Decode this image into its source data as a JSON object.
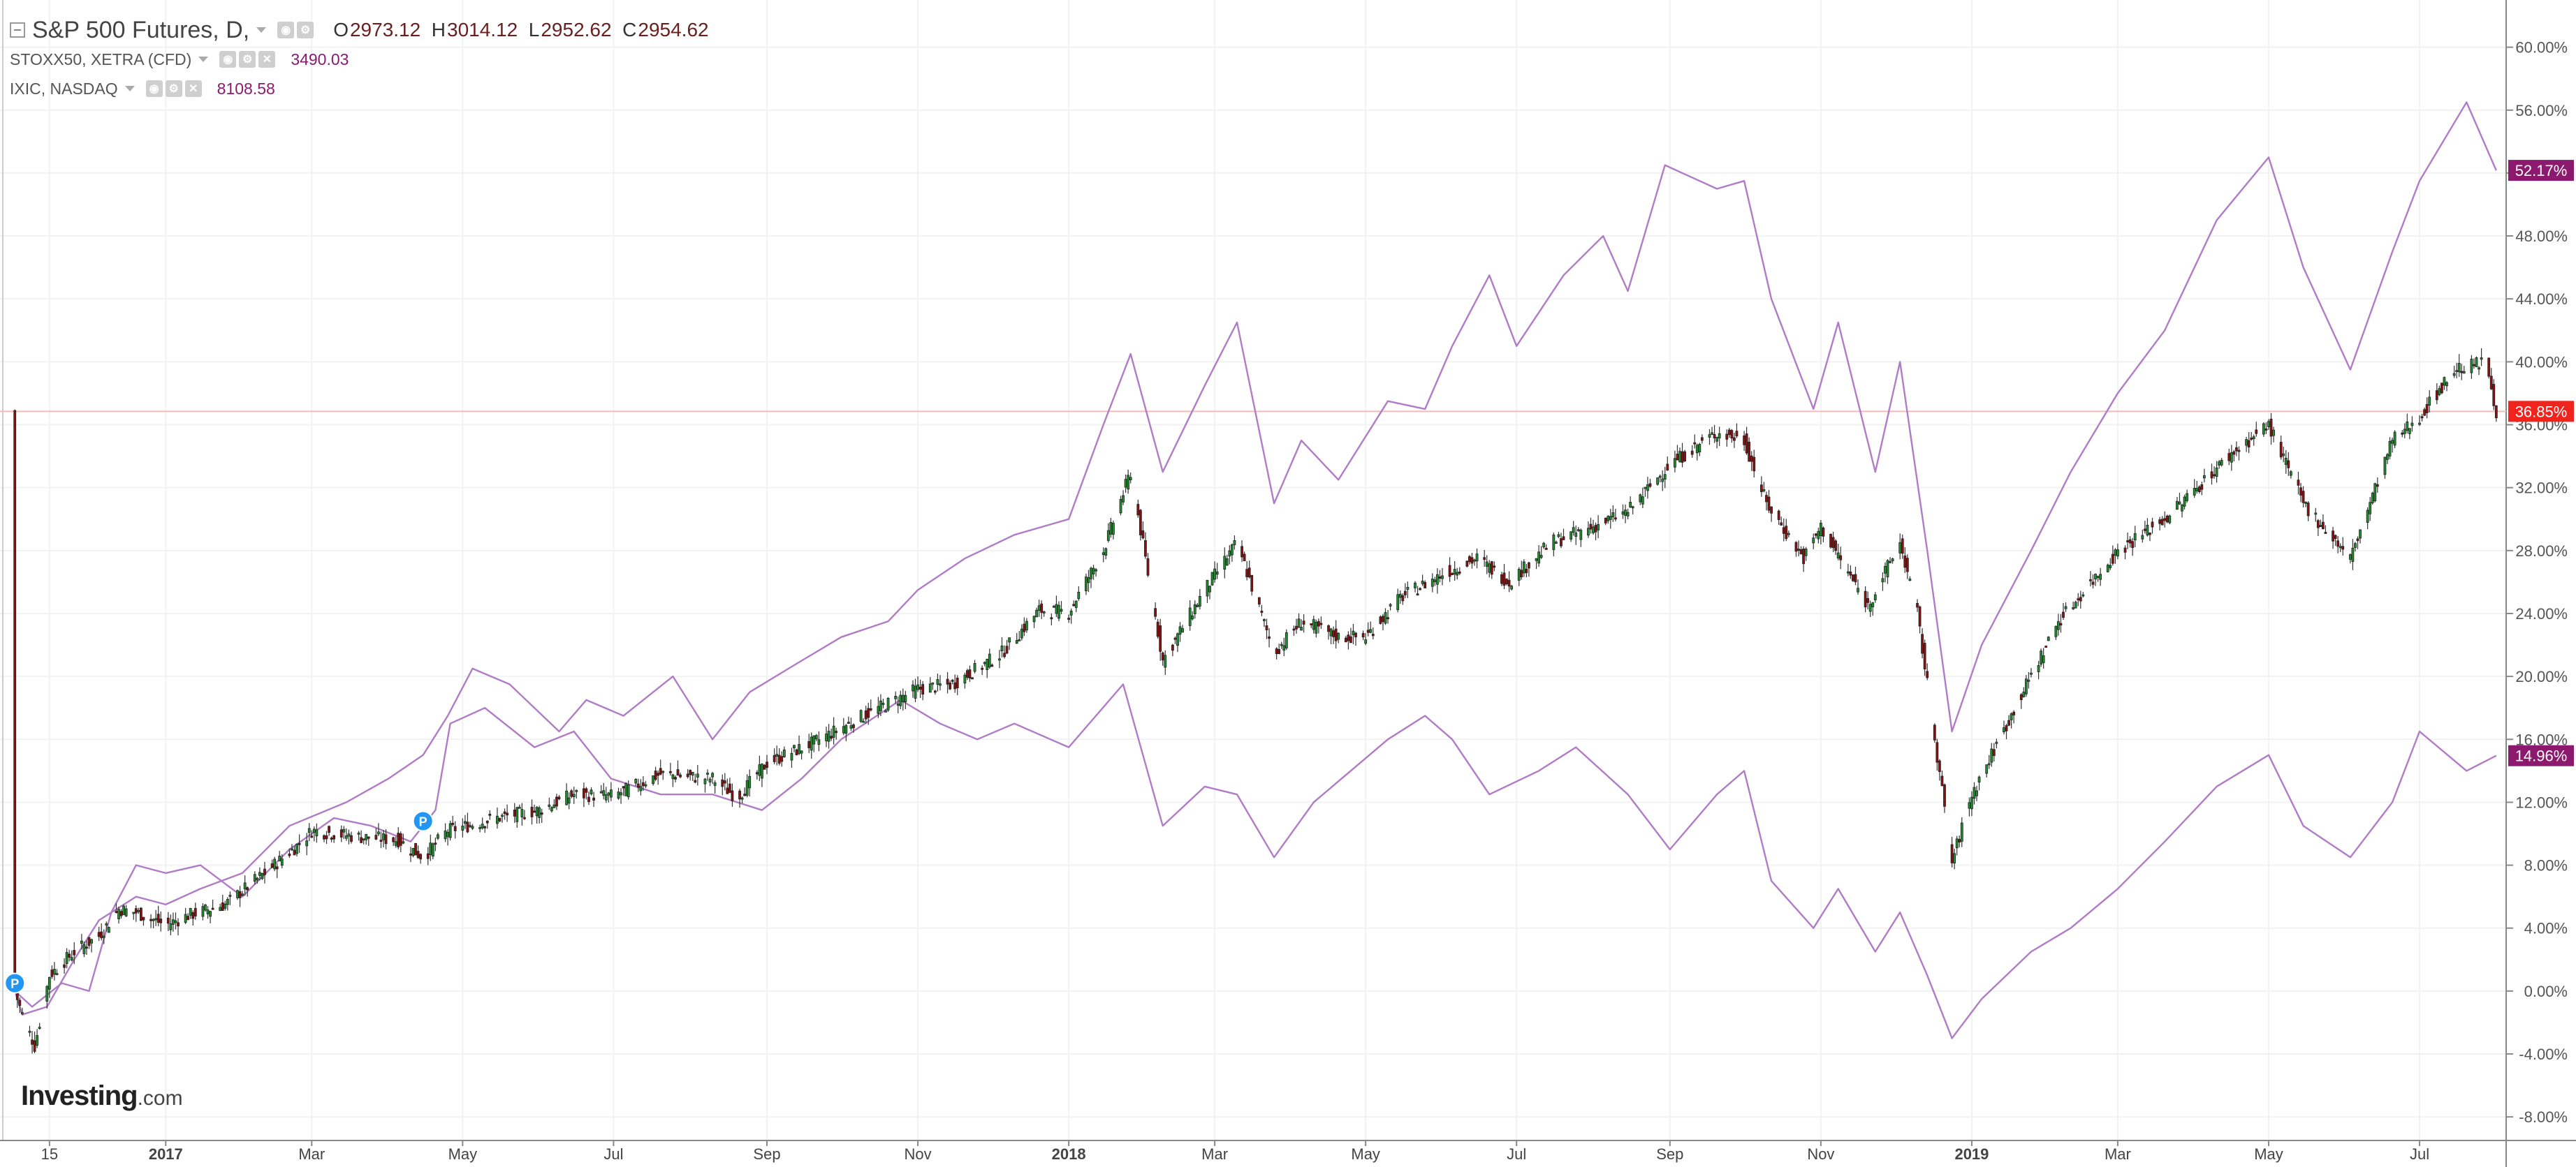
{
  "legend": {
    "main": {
      "symbol": "S&P 500 Futures, D,",
      "open_key": "O",
      "open": "2973.12",
      "high_key": "H",
      "high": "3014.12",
      "low_key": "L",
      "low": "2952.62",
      "close_key": "C",
      "close": "2954.62"
    },
    "stoxx": {
      "symbol": "STOXX50, XETRA (CFD)",
      "value": "3490.03"
    },
    "ixic": {
      "symbol": "IXIC, NASDAQ",
      "value": "8108.58"
    }
  },
  "logo": {
    "text": "Investing",
    "suffix": ".com"
  },
  "colors": {
    "up": "#1f8f2e",
    "down": "#8b1010",
    "compare": "#b07cc6",
    "price_line": "#f7b8b8",
    "badge_purple": "#8b1a6e",
    "badge_red": "#f0241c",
    "grid": "#f2f2f2",
    "axis_text": "#555555"
  },
  "chart_data": {
    "type": "line",
    "title": "",
    "ylabel": "",
    "xlabel": "",
    "y_scale": "percent",
    "ylim": [
      -9.5,
      63
    ],
    "y_ticks": [
      "-8.00%",
      "-4.00%",
      "0.00%",
      "4.00%",
      "8.00%",
      "12.00%",
      "16.00%",
      "20.00%",
      "24.00%",
      "28.00%",
      "32.00%",
      "36.00%",
      "40.00%",
      "44.00%",
      "48.00%",
      "52.00%",
      "56.00%",
      "60.00%"
    ],
    "y_tick_values": [
      -8,
      -4,
      0,
      4,
      8,
      12,
      16,
      20,
      24,
      28,
      32,
      36,
      40,
      44,
      48,
      52,
      56,
      60
    ],
    "x_tick_labels": [
      "15",
      "2017",
      "Mar",
      "May",
      "Jul",
      "Sep",
      "Nov",
      "2018",
      "Mar",
      "May",
      "Jul",
      "Sep",
      "Nov",
      "2019",
      "Mar",
      "May",
      "Jul"
    ],
    "x_tick_bold": [
      false,
      true,
      false,
      false,
      false,
      false,
      false,
      true,
      false,
      false,
      false,
      false,
      false,
      true,
      false,
      false,
      false
    ],
    "x_tick_dates": [
      "2016-11-15",
      "2017-01-01",
      "2017-03-01",
      "2017-05-01",
      "2017-07-01",
      "2017-09-01",
      "2017-11-01",
      "2018-01-01",
      "2018-03-01",
      "2018-05-01",
      "2018-07-01",
      "2018-09-01",
      "2018-11-01",
      "2019-01-01",
      "2019-03-01",
      "2019-05-01",
      "2019-07-01"
    ],
    "x_range": [
      "2016-10-26",
      "2019-08-05"
    ],
    "current_price_level": 36.85,
    "badges": [
      {
        "text": "52.17%",
        "value": 52.17,
        "color": "purple"
      },
      {
        "text": "36.85%",
        "value": 36.85,
        "color": "red"
      },
      {
        "text": "14.96%",
        "value": 14.96,
        "color": "purple"
      }
    ],
    "markers": [
      {
        "label": "P",
        "date": "2016-11-01",
        "value": 0.5
      },
      {
        "label": "P",
        "date": "2017-04-15",
        "value": 10.8
      }
    ],
    "series": [
      {
        "name": "S&P 500 Futures",
        "style": "candles",
        "points": [
          [
            "2016-11-01",
            0
          ],
          [
            "2016-11-04",
            -1.5
          ],
          [
            "2016-11-09",
            -3.5
          ],
          [
            "2016-11-15",
            1
          ],
          [
            "2016-11-25",
            2.5
          ],
          [
            "2016-12-05",
            3.5
          ],
          [
            "2016-12-13",
            5.2
          ],
          [
            "2016-12-20",
            5
          ],
          [
            "2017-01-01",
            4.2
          ],
          [
            "2017-01-10",
            4.8
          ],
          [
            "2017-01-25",
            5.5
          ],
          [
            "2017-02-10",
            7.5
          ],
          [
            "2017-02-25",
            9.5
          ],
          [
            "2017-03-01",
            10.2
          ],
          [
            "2017-03-20",
            9.8
          ],
          [
            "2017-04-05",
            9.6
          ],
          [
            "2017-04-15",
            8.5
          ],
          [
            "2017-04-25",
            10.2
          ],
          [
            "2017-05-15",
            11
          ],
          [
            "2017-06-01",
            11.5
          ],
          [
            "2017-06-15",
            12.5
          ],
          [
            "2017-07-01",
            12.4
          ],
          [
            "2017-07-20",
            13.8
          ],
          [
            "2017-08-10",
            13.5
          ],
          [
            "2017-08-20",
            12.3
          ],
          [
            "2017-09-01",
            14.5
          ],
          [
            "2017-09-20",
            15.8
          ],
          [
            "2017-10-10",
            17.5
          ],
          [
            "2017-11-01",
            19.2
          ],
          [
            "2017-11-15",
            19.5
          ],
          [
            "2017-12-05",
            21.5
          ],
          [
            "2017-12-20",
            24.2
          ],
          [
            "2018-01-01",
            24.1
          ],
          [
            "2018-01-15",
            28
          ],
          [
            "2018-01-26",
            33
          ],
          [
            "2018-02-08",
            21
          ],
          [
            "2018-02-25",
            25.5
          ],
          [
            "2018-03-10",
            28.5
          ],
          [
            "2018-03-25",
            21.5
          ],
          [
            "2018-04-05",
            23.5
          ],
          [
            "2018-04-20",
            22.5
          ],
          [
            "2018-05-01",
            22.5
          ],
          [
            "2018-05-15",
            25
          ],
          [
            "2018-06-01",
            26.5
          ],
          [
            "2018-06-15",
            27.5
          ],
          [
            "2018-06-28",
            26
          ],
          [
            "2018-07-15",
            28.5
          ],
          [
            "2018-08-01",
            29.5
          ],
          [
            "2018-08-15",
            30.5
          ],
          [
            "2018-09-01",
            33.5
          ],
          [
            "2018-09-20",
            35.5
          ],
          [
            "2018-10-01",
            35
          ],
          [
            "2018-10-10",
            31
          ],
          [
            "2018-10-25",
            27.5
          ],
          [
            "2018-11-01",
            29.5
          ],
          [
            "2018-11-20",
            24.5
          ],
          [
            "2018-12-03",
            28.5
          ],
          [
            "2018-12-10",
            24
          ],
          [
            "2018-12-24",
            8.2
          ],
          [
            "2019-01-01",
            12.5
          ],
          [
            "2019-01-20",
            18.5
          ],
          [
            "2019-02-05",
            23.5
          ],
          [
            "2019-03-01",
            28
          ],
          [
            "2019-03-20",
            30
          ],
          [
            "2019-04-15",
            34
          ],
          [
            "2019-05-01",
            36
          ],
          [
            "2019-05-15",
            31
          ],
          [
            "2019-06-03",
            27.5
          ],
          [
            "2019-06-20",
            35
          ],
          [
            "2019-07-01",
            36.5
          ],
          [
            "2019-07-15",
            39.5
          ],
          [
            "2019-07-28",
            40
          ],
          [
            "2019-08-01",
            36.85
          ]
        ]
      },
      {
        "name": "IXIC",
        "style": "line",
        "points": [
          [
            "2016-11-01",
            0
          ],
          [
            "2016-11-04",
            -1.5
          ],
          [
            "2016-11-14",
            -1
          ],
          [
            "2016-11-25",
            2
          ],
          [
            "2016-12-05",
            4.5
          ],
          [
            "2016-12-20",
            6
          ],
          [
            "2017-01-01",
            5.5
          ],
          [
            "2017-01-15",
            6.5
          ],
          [
            "2017-02-01",
            7.5
          ],
          [
            "2017-02-20",
            10.5
          ],
          [
            "2017-03-15",
            12
          ],
          [
            "2017-04-01",
            13.5
          ],
          [
            "2017-04-15",
            15
          ],
          [
            "2017-04-25",
            17.5
          ],
          [
            "2017-05-05",
            20.5
          ],
          [
            "2017-05-20",
            19.5
          ],
          [
            "2017-06-09",
            16.5
          ],
          [
            "2017-06-20",
            18.5
          ],
          [
            "2017-07-05",
            17.5
          ],
          [
            "2017-07-25",
            20
          ],
          [
            "2017-08-10",
            16
          ],
          [
            "2017-08-25",
            19
          ],
          [
            "2017-09-15",
            21
          ],
          [
            "2017-10-01",
            22.5
          ],
          [
            "2017-10-20",
            23.5
          ],
          [
            "2017-11-01",
            25.5
          ],
          [
            "2017-11-20",
            27.5
          ],
          [
            "2017-12-10",
            29
          ],
          [
            "2018-01-01",
            30
          ],
          [
            "2018-01-15",
            36
          ],
          [
            "2018-01-26",
            40.5
          ],
          [
            "2018-02-08",
            33
          ],
          [
            "2018-02-25",
            38.5
          ],
          [
            "2018-03-10",
            42.5
          ],
          [
            "2018-03-25",
            31
          ],
          [
            "2018-04-05",
            35
          ],
          [
            "2018-04-20",
            32.5
          ],
          [
            "2018-05-10",
            37.5
          ],
          [
            "2018-05-25",
            37
          ],
          [
            "2018-06-05",
            41
          ],
          [
            "2018-06-20",
            45.5
          ],
          [
            "2018-07-01",
            41
          ],
          [
            "2018-07-20",
            45.5
          ],
          [
            "2018-08-05",
            48
          ],
          [
            "2018-08-15",
            44.5
          ],
          [
            "2018-08-30",
            52.5
          ],
          [
            "2018-09-20",
            51
          ],
          [
            "2018-10-01",
            51.5
          ],
          [
            "2018-10-12",
            44
          ],
          [
            "2018-10-29",
            37
          ],
          [
            "2018-11-08",
            42.5
          ],
          [
            "2018-11-23",
            33
          ],
          [
            "2018-12-03",
            40
          ],
          [
            "2018-12-14",
            28
          ],
          [
            "2018-12-24",
            16.5
          ],
          [
            "2019-01-05",
            22
          ],
          [
            "2019-01-25",
            28
          ],
          [
            "2019-02-10",
            33
          ],
          [
            "2019-03-01",
            38
          ],
          [
            "2019-03-20",
            42
          ],
          [
            "2019-04-10",
            49
          ],
          [
            "2019-05-01",
            53
          ],
          [
            "2019-05-15",
            46
          ],
          [
            "2019-06-03",
            39.5
          ],
          [
            "2019-06-20",
            47
          ],
          [
            "2019-07-01",
            51.5
          ],
          [
            "2019-07-20",
            56.5
          ],
          [
            "2019-08-01",
            52.17
          ]
        ]
      },
      {
        "name": "STOXX50",
        "style": "line",
        "points": [
          [
            "2016-11-01",
            0
          ],
          [
            "2016-11-08",
            -1
          ],
          [
            "2016-11-20",
            0.5
          ],
          [
            "2016-12-01",
            0
          ],
          [
            "2016-12-10",
            5
          ],
          [
            "2016-12-20",
            8
          ],
          [
            "2017-01-01",
            7.5
          ],
          [
            "2017-01-15",
            8
          ],
          [
            "2017-02-01",
            6
          ],
          [
            "2017-02-20",
            9
          ],
          [
            "2017-03-10",
            11
          ],
          [
            "2017-03-25",
            10.5
          ],
          [
            "2017-04-10",
            9.5
          ],
          [
            "2017-04-20",
            11.5
          ],
          [
            "2017-04-26",
            17
          ],
          [
            "2017-05-10",
            18
          ],
          [
            "2017-05-30",
            15.5
          ],
          [
            "2017-06-15",
            16.5
          ],
          [
            "2017-06-30",
            13.5
          ],
          [
            "2017-07-20",
            12.5
          ],
          [
            "2017-08-10",
            12.5
          ],
          [
            "2017-08-30",
            11.5
          ],
          [
            "2017-09-15",
            13.5
          ],
          [
            "2017-10-01",
            16
          ],
          [
            "2017-10-25",
            18.5
          ],
          [
            "2017-11-10",
            17
          ],
          [
            "2017-11-25",
            16
          ],
          [
            "2017-12-10",
            17
          ],
          [
            "2018-01-01",
            15.5
          ],
          [
            "2018-01-23",
            19.5
          ],
          [
            "2018-02-08",
            10.5
          ],
          [
            "2018-02-25",
            13
          ],
          [
            "2018-03-10",
            12.5
          ],
          [
            "2018-03-25",
            8.5
          ],
          [
            "2018-04-10",
            12
          ],
          [
            "2018-05-10",
            16
          ],
          [
            "2018-05-25",
            17.5
          ],
          [
            "2018-06-05",
            16
          ],
          [
            "2018-06-20",
            12.5
          ],
          [
            "2018-07-10",
            14
          ],
          [
            "2018-07-25",
            15.5
          ],
          [
            "2018-08-15",
            12.5
          ],
          [
            "2018-09-01",
            9
          ],
          [
            "2018-09-20",
            12.5
          ],
          [
            "2018-10-01",
            14
          ],
          [
            "2018-10-12",
            7
          ],
          [
            "2018-10-29",
            4
          ],
          [
            "2018-11-08",
            6.5
          ],
          [
            "2018-11-23",
            2.5
          ],
          [
            "2018-12-03",
            5
          ],
          [
            "2018-12-14",
            1
          ],
          [
            "2018-12-24",
            -3
          ],
          [
            "2019-01-05",
            -0.5
          ],
          [
            "2019-01-25",
            2.5
          ],
          [
            "2019-02-10",
            4
          ],
          [
            "2019-03-01",
            6.5
          ],
          [
            "2019-03-20",
            9.5
          ],
          [
            "2019-04-10",
            13
          ],
          [
            "2019-05-01",
            15
          ],
          [
            "2019-05-15",
            10.5
          ],
          [
            "2019-06-03",
            8.5
          ],
          [
            "2019-06-20",
            12
          ],
          [
            "2019-07-01",
            16.5
          ],
          [
            "2019-07-20",
            14
          ],
          [
            "2019-08-01",
            14.96
          ]
        ]
      }
    ]
  }
}
